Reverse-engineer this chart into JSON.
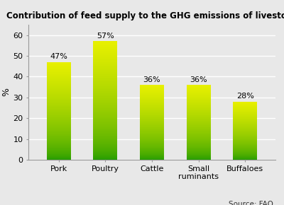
{
  "title": "Contribution of feed supply to the GHG emissions of livestock",
  "categories": [
    "Pork",
    "Poultry",
    "Cattle",
    "Small\nruminants",
    "Buffaloes"
  ],
  "values": [
    47,
    57,
    36,
    36,
    28
  ],
  "ylabel": "%",
  "ylim": [
    0,
    65
  ],
  "yticks": [
    0,
    10,
    20,
    30,
    40,
    50,
    60
  ],
  "source": "Source: FAO",
  "bar_bottom_color": "#1f9900",
  "bar_top_color": "#e8f000",
  "bar_mid_color": "#88dd00",
  "title_fontsize": 8.5,
  "label_fontsize": 8,
  "tick_fontsize": 8,
  "source_fontsize": 7.5,
  "background_color": "#e8e8e8",
  "plot_bg_color": "#e8e8e8",
  "grid_color": "#ffffff",
  "bar_width": 0.52
}
